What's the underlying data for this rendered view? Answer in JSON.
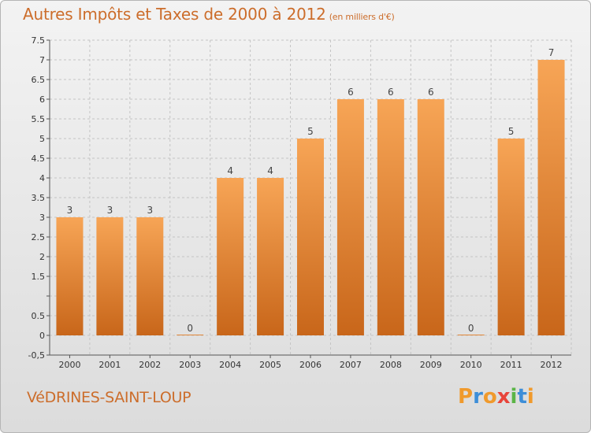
{
  "title": "Autres Impôts et Taxes de 2000 à 2012",
  "unit": "(en milliers d'€)",
  "city": "VéDRINES-SAINT-LOUP",
  "logo": {
    "letters": [
      "P",
      "r",
      "o",
      "x",
      "i",
      "t",
      "i"
    ],
    "colors": [
      "#f09a2c",
      "#3d8ed8",
      "#f09a2c",
      "#e8443a",
      "#5bb547",
      "#3d8ed8",
      "#f09a2c"
    ]
  },
  "colors": {
    "bar_top": "#f7a556",
    "bar_bottom": "#c8661a",
    "accent": "#cc6d2b"
  },
  "chart_data": {
    "type": "bar",
    "title": "Autres Impôts et Taxes de 2000 à 2012",
    "ylabel": "",
    "xlabel": "",
    "categories": [
      "2000",
      "2001",
      "2002",
      "2003",
      "2004",
      "2005",
      "2006",
      "2007",
      "2008",
      "2009",
      "2010",
      "2011",
      "2012"
    ],
    "values": [
      3,
      3,
      3,
      0,
      4,
      4,
      5,
      6,
      6,
      6,
      0,
      5,
      7
    ],
    "value_labels": [
      "3",
      "3",
      "3",
      "0",
      "4",
      "4",
      "5",
      "6",
      "6",
      "6",
      "0",
      "5",
      "7"
    ],
    "ylim": [
      -0.5,
      7.5
    ],
    "yticks": [
      -0.5,
      0,
      0.5,
      1,
      1.5,
      2,
      2.5,
      3,
      3.5,
      4,
      4.5,
      5,
      5.5,
      6,
      6.5,
      7,
      7.5
    ],
    "ytick_labels": [
      "-0,5",
      "0",
      "0.5",
      "",
      "1.5",
      "2",
      "2.5",
      "3",
      "3.5",
      "4",
      "4.5",
      "5",
      "5.5",
      "6",
      "6.5",
      "7",
      "7.5"
    ],
    "grid": true
  }
}
